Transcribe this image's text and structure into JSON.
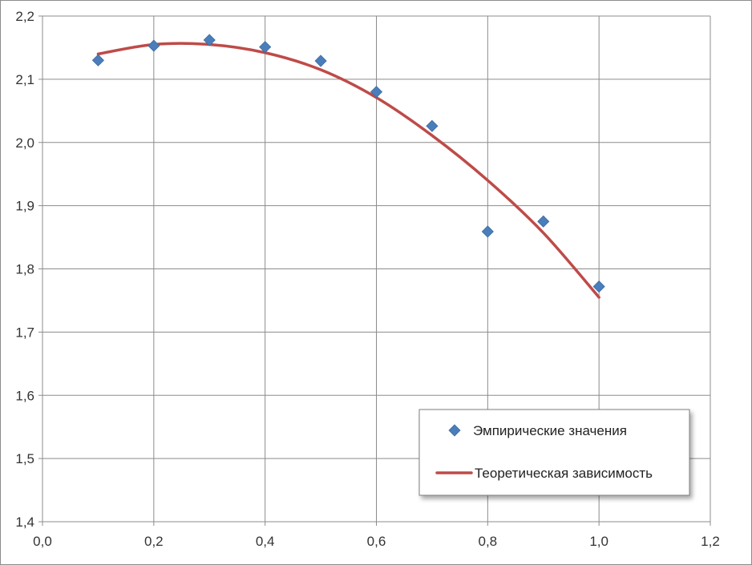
{
  "chart_data": {
    "type": "scatter",
    "title": "",
    "xlabel": "",
    "ylabel": "",
    "xlim": [
      0.0,
      1.2
    ],
    "ylim": [
      1.4,
      2.2
    ],
    "x_ticks": [
      "0,0",
      "0,2",
      "0,4",
      "0,6",
      "0,8",
      "1,0",
      "1,2"
    ],
    "x_tick_values": [
      0.0,
      0.2,
      0.4,
      0.6,
      0.8,
      1.0,
      1.2
    ],
    "y_ticks": [
      "1,4",
      "1,5",
      "1,6",
      "1,7",
      "1,8",
      "1,9",
      "2,0",
      "2,1",
      "2,2"
    ],
    "y_tick_values": [
      1.4,
      1.5,
      1.6,
      1.7,
      1.8,
      1.9,
      2.0,
      2.1,
      2.2
    ],
    "grid": true,
    "legend_position": "bottom-right",
    "series": [
      {
        "name": "Эмпирические значения",
        "kind": "scatter",
        "marker": "diamond",
        "color": "#4a7ebb",
        "x": [
          0.1,
          0.2,
          0.3,
          0.4,
          0.5,
          0.6,
          0.7,
          0.8,
          0.9,
          1.0
        ],
        "y": [
          2.13,
          2.153,
          2.162,
          2.151,
          2.129,
          2.08,
          2.026,
          1.859,
          1.875,
          1.772
        ]
      },
      {
        "name": "Теоретическая зависимость",
        "kind": "line",
        "color": "#be4b48",
        "x": [
          0.1,
          0.2,
          0.3,
          0.4,
          0.5,
          0.6,
          0.7,
          0.8,
          0.9,
          1.0
        ],
        "y": [
          2.14,
          2.155,
          2.155,
          2.142,
          2.115,
          2.071,
          2.011,
          1.94,
          1.857,
          1.755
        ]
      }
    ]
  }
}
